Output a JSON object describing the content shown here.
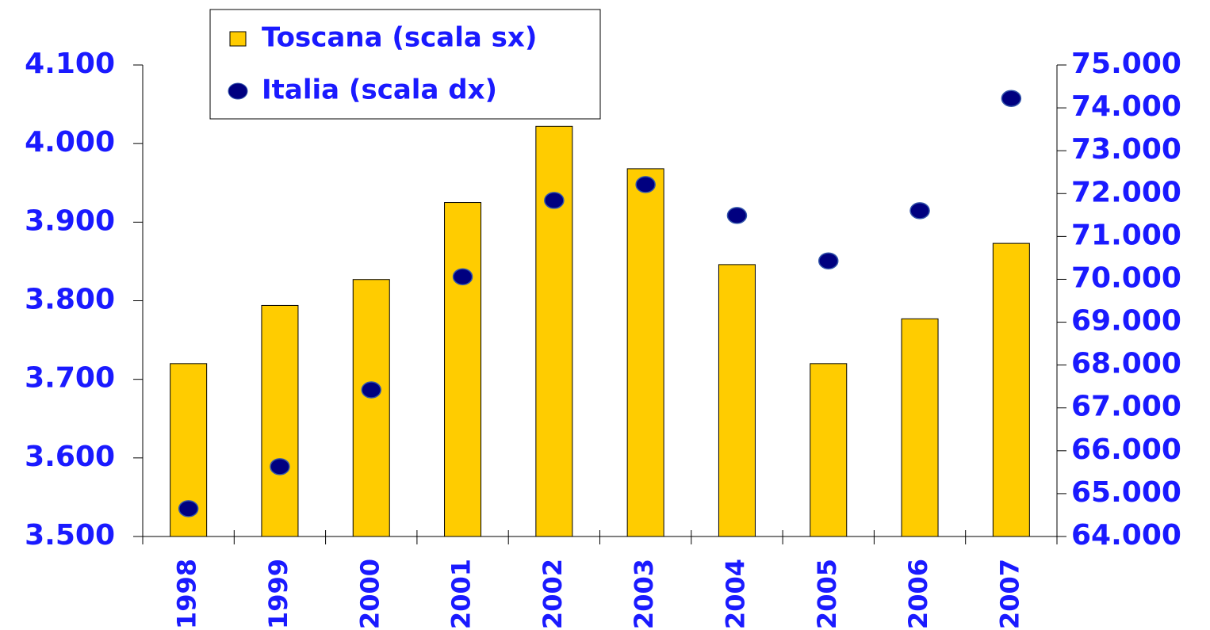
{
  "chart_data": {
    "type": "bar",
    "categories": [
      "1998",
      "1999",
      "2000",
      "2001",
      "2002",
      "2003",
      "2004",
      "2005",
      "2006",
      "2007"
    ],
    "series": [
      {
        "name": "Toscana (scala sx)",
        "type": "bar",
        "axis": "y",
        "color": "#ffcc00",
        "values": [
          3720,
          3794,
          3827,
          3925,
          4022,
          3968,
          3846,
          3720,
          3777,
          3873
        ]
      },
      {
        "name": "Italia (scala dx)",
        "type": "scatter",
        "axis": "y2",
        "color": "#000080",
        "values": [
          64650,
          65630,
          67420,
          70060,
          71840,
          72210,
          71490,
          70430,
          71600,
          74220
        ]
      }
    ],
    "ylim": [
      3500,
      4100
    ],
    "yticks": [
      {
        "value": 3500,
        "label": "3.500"
      },
      {
        "value": 3600,
        "label": "3.600"
      },
      {
        "value": 3700,
        "label": "3.700"
      },
      {
        "value": 3800,
        "label": "3.800"
      },
      {
        "value": 3900,
        "label": "3.900"
      },
      {
        "value": 4000,
        "label": "4.000"
      },
      {
        "value": 4100,
        "label": "4.100"
      }
    ],
    "y2lim": [
      64000,
      75000
    ],
    "y2ticks": [
      {
        "value": 64000,
        "label": "64.000"
      },
      {
        "value": 65000,
        "label": "65.000"
      },
      {
        "value": 66000,
        "label": "66.000"
      },
      {
        "value": 67000,
        "label": "67.000"
      },
      {
        "value": 68000,
        "label": "68.000"
      },
      {
        "value": 69000,
        "label": "69.000"
      },
      {
        "value": 70000,
        "label": "70.000"
      },
      {
        "value": 71000,
        "label": "71.000"
      },
      {
        "value": 72000,
        "label": "72.000"
      },
      {
        "value": 73000,
        "label": "73.000"
      },
      {
        "value": 74000,
        "label": "74.000"
      },
      {
        "value": 75000,
        "label": "75.000"
      }
    ],
    "legend": "top-left",
    "grid": false
  }
}
